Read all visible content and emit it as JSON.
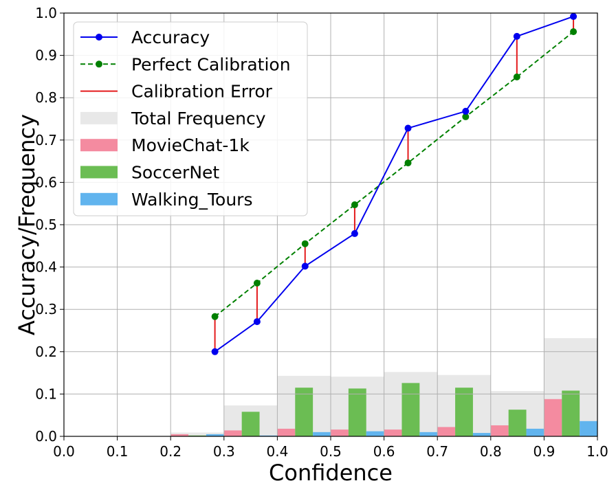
{
  "chart_data": {
    "type": "bar",
    "xlabel": "Confidence",
    "ylabel": "Accuracy/Frequency",
    "xlim": [
      0.0,
      1.0
    ],
    "ylim": [
      0.0,
      1.0
    ],
    "grid": true,
    "legend_position": "top-left",
    "xticks": [
      "0.0",
      "0.1",
      "0.2",
      "0.3",
      "0.4",
      "0.5",
      "0.6",
      "0.7",
      "0.8",
      "0.9",
      "1.0"
    ],
    "yticks": [
      "0.0",
      "0.1",
      "0.2",
      "0.3",
      "0.4",
      "0.5",
      "0.6",
      "0.7",
      "0.8",
      "0.9",
      "1.0"
    ],
    "bins": [
      [
        0.2,
        0.3
      ],
      [
        0.3,
        0.4
      ],
      [
        0.4,
        0.5
      ],
      [
        0.5,
        0.6
      ],
      [
        0.6,
        0.7
      ],
      [
        0.7,
        0.8
      ],
      [
        0.8,
        0.9
      ],
      [
        0.9,
        1.0
      ]
    ],
    "legend": [
      "Accuracy",
      "Perfect Calibration",
      "Calibration Error",
      "Total Frequency",
      "MovieChat-1k",
      "SoccerNet",
      "Walking_Tours"
    ],
    "colors": {
      "accuracy": "#0000ee",
      "perfect": "#008000",
      "error": "#e41a1c",
      "total": "#e8e8e8",
      "moviechat": "#f48ba0",
      "soccernet": "#6bbd53",
      "walking": "#61b4ee"
    },
    "series": [
      {
        "name": "Accuracy",
        "x": [
          0.283,
          0.362,
          0.452,
          0.545,
          0.645,
          0.753,
          0.849,
          0.955
        ],
        "values": [
          0.2,
          0.271,
          0.402,
          0.479,
          0.728,
          0.768,
          0.945,
          0.992
        ]
      },
      {
        "name": "Perfect Calibration",
        "x": [
          0.283,
          0.362,
          0.452,
          0.545,
          0.645,
          0.753,
          0.849,
          0.955
        ],
        "values": [
          0.283,
          0.362,
          0.455,
          0.547,
          0.646,
          0.755,
          0.849,
          0.956
        ]
      },
      {
        "name": "Total Frequency",
        "values": [
          0.009,
          0.073,
          0.143,
          0.141,
          0.152,
          0.145,
          0.107,
          0.232
        ]
      },
      {
        "name": "MovieChat-1k",
        "values": [
          0.005,
          0.014,
          0.018,
          0.016,
          0.016,
          0.022,
          0.026,
          0.088
        ]
      },
      {
        "name": "SoccerNet",
        "values": [
          0.002,
          0.058,
          0.115,
          0.113,
          0.126,
          0.115,
          0.063,
          0.108
        ]
      },
      {
        "name": "Walking_Tours",
        "values": [
          0.005,
          0.002,
          0.01,
          0.012,
          0.01,
          0.008,
          0.018,
          0.036
        ]
      }
    ]
  }
}
